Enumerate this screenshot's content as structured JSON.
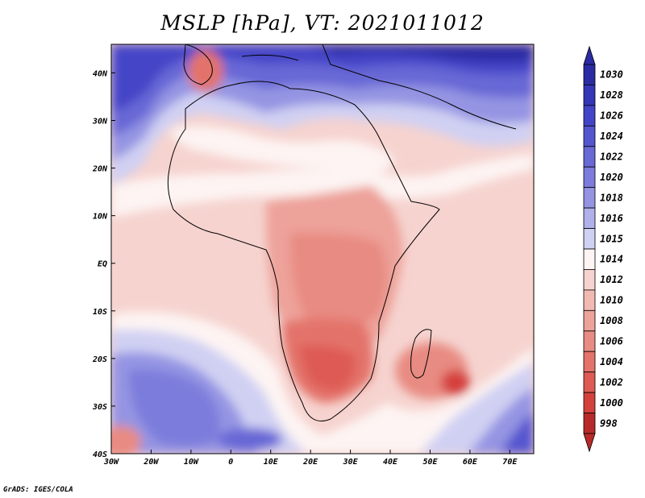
{
  "title": "MSLP [hPa], VT: 2021011012",
  "footer": "GrADS: IGES/COLA",
  "map": {
    "lon_range": [
      -30,
      76
    ],
    "lat_range": [
      -40,
      46
    ],
    "lon_ticks": [
      {
        "value": -30,
        "label": "30W"
      },
      {
        "value": -20,
        "label": "20W"
      },
      {
        "value": -10,
        "label": "10W"
      },
      {
        "value": 0,
        "label": "0"
      },
      {
        "value": 10,
        "label": "10E"
      },
      {
        "value": 20,
        "label": "20E"
      },
      {
        "value": 30,
        "label": "30E"
      },
      {
        "value": 40,
        "label": "40E"
      },
      {
        "value": 50,
        "label": "50E"
      },
      {
        "value": 60,
        "label": "60E"
      },
      {
        "value": 70,
        "label": "70E"
      }
    ],
    "lat_ticks": [
      {
        "value": 40,
        "label": "40N"
      },
      {
        "value": 30,
        "label": "30N"
      },
      {
        "value": 20,
        "label": "20N"
      },
      {
        "value": 10,
        "label": "10N"
      },
      {
        "value": 0,
        "label": "EQ"
      },
      {
        "value": -10,
        "label": "10S"
      },
      {
        "value": -20,
        "label": "20S"
      },
      {
        "value": -30,
        "label": "30S"
      },
      {
        "value": -40,
        "label": "40S"
      }
    ]
  },
  "colorbar": {
    "levels": [
      "1030",
      "1028",
      "1026",
      "1024",
      "1022",
      "1020",
      "1018",
      "1016",
      "1015",
      "1014",
      "1012",
      "1010",
      "1008",
      "1006",
      "1004",
      "1002",
      "1000",
      "998"
    ],
    "colors": [
      "#2b2ba3",
      "#3535b8",
      "#4444c8",
      "#5555cf",
      "#6868d6",
      "#7c7cdc",
      "#9494e3",
      "#b0b0eb",
      "#d0d0f3",
      "#fdf4f3",
      "#f6d3cf",
      "#f2b9b3",
      "#eda29a",
      "#e88b82",
      "#e3736b",
      "#de5a54",
      "#d4413d",
      "#b82a2a"
    ]
  }
}
